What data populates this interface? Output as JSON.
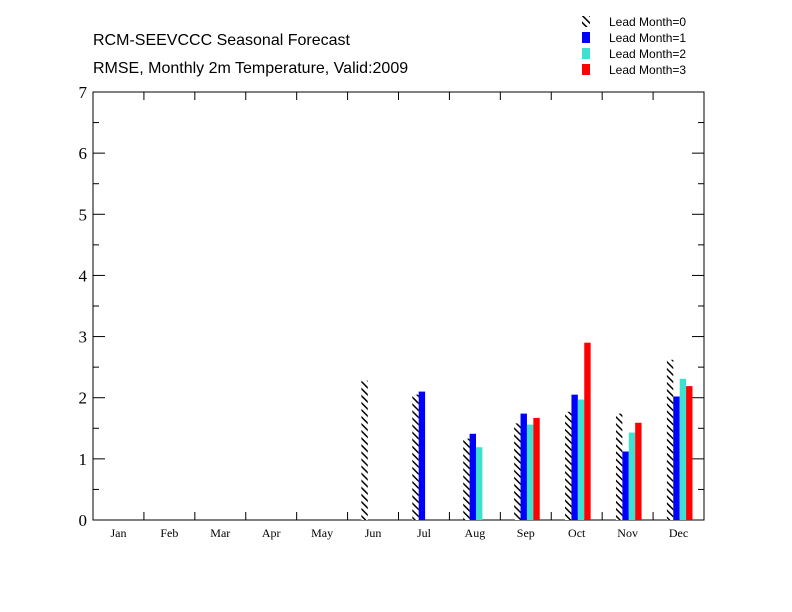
{
  "chart_data": {
    "type": "bar",
    "title": "RCM-SEEVCCC Seasonal Forecast",
    "subtitle": "RMSE, Monthly 2m Temperature, Valid:2009",
    "categories": [
      "Jan",
      "Feb",
      "Mar",
      "Apr",
      "May",
      "Jun",
      "Jul",
      "Aug",
      "Sep",
      "Oct",
      "Nov",
      "Dec"
    ],
    "ylim": [
      0,
      7
    ],
    "yticks": [
      "0",
      "1",
      "2",
      "3",
      "4",
      "5",
      "6",
      "7"
    ],
    "legend_position": "top-right",
    "series": [
      {
        "name": "Lead Month=0",
        "color": "#000000",
        "pattern": "hatched",
        "values": [
          null,
          null,
          null,
          null,
          null,
          2.28,
          2.05,
          1.33,
          1.58,
          1.77,
          1.74,
          2.62
        ]
      },
      {
        "name": "Lead Month=1",
        "color": "#0000ff",
        "pattern": "solid",
        "values": [
          null,
          null,
          null,
          null,
          null,
          null,
          2.1,
          1.41,
          1.74,
          2.05,
          1.12,
          2.02
        ]
      },
      {
        "name": "Lead Month=2",
        "color": "#40e0d0",
        "pattern": "solid",
        "values": [
          null,
          null,
          null,
          null,
          null,
          null,
          null,
          1.19,
          1.56,
          1.97,
          1.43,
          2.31
        ]
      },
      {
        "name": "Lead Month=3",
        "color": "#ff0000",
        "pattern": "solid",
        "values": [
          null,
          null,
          null,
          null,
          null,
          null,
          null,
          null,
          1.67,
          2.9,
          1.59,
          2.19
        ]
      }
    ]
  }
}
